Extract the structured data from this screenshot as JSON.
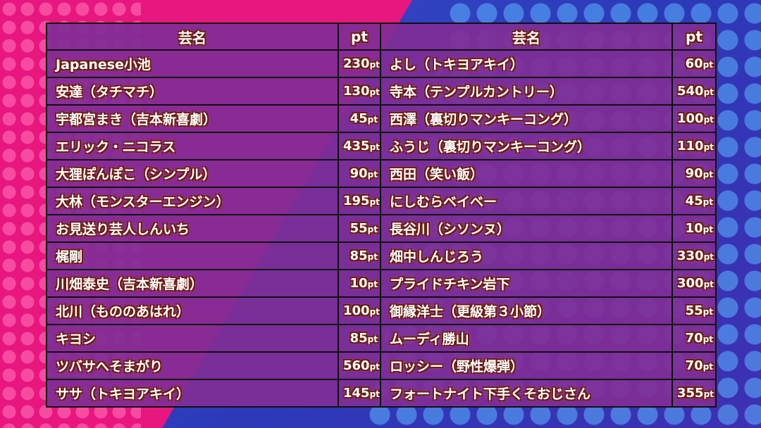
{
  "headers": {
    "name": "芸名",
    "pt": "pt"
  },
  "unit": "pt",
  "rows": [
    {
      "left_name": "Japanese小池",
      "left_pt": 230,
      "right_name": "よし（トキヨアキイ）",
      "right_pt": 60
    },
    {
      "left_name": "安達（タチマチ）",
      "left_pt": 130,
      "right_name": "寺本（テンプルカントリー）",
      "right_pt": 540
    },
    {
      "left_name": "宇都宮まき（吉本新喜劇）",
      "left_pt": 45,
      "right_name": "西澤（裏切りマンキーコング）",
      "right_pt": 100
    },
    {
      "left_name": "エリック・ニコラス",
      "left_pt": 435,
      "right_name": "ふうじ（裏切りマンキーコング）",
      "right_pt": 110
    },
    {
      "left_name": "大狸ぽんぽこ（シンプル）",
      "left_pt": 90,
      "right_name": "西田（笑い飯）",
      "right_pt": 90
    },
    {
      "left_name": "大林（モンスターエンジン）",
      "left_pt": 195,
      "right_name": "にしむらベイベー",
      "right_pt": 45
    },
    {
      "left_name": "お見送り芸人しんいち",
      "left_pt": 55,
      "right_name": "長谷川（シソンヌ）",
      "right_pt": 10
    },
    {
      "left_name": "梶剛",
      "left_pt": 85,
      "right_name": "畑中しんじろう",
      "right_pt": 330
    },
    {
      "left_name": "川畑泰史（吉本新喜劇）",
      "left_pt": 10,
      "right_name": "プライドチキン岩下",
      "right_pt": 300
    },
    {
      "left_name": "北川（もののあはれ）",
      "left_pt": 100,
      "right_name": "御縁洋士（更級第３小節）",
      "right_pt": 55
    },
    {
      "left_name": "キヨシ",
      "left_pt": 85,
      "right_name": "ムーディ勝山",
      "right_pt": 70
    },
    {
      "left_name": "ツバサへそまがり",
      "left_pt": 560,
      "right_name": "ロッシー（野性爆弾）",
      "right_pt": 70
    },
    {
      "left_name": "ササ（トキヨアキイ）",
      "left_pt": 145,
      "right_name": "フォートナイト下手くそおじさん",
      "right_pt": 355
    }
  ],
  "colors": {
    "background_left": "#e8167f",
    "background_right": "#3a4fd0",
    "table_fill": "#802d96",
    "text_outline": "#6a1f10",
    "grid_line": "#111111"
  }
}
